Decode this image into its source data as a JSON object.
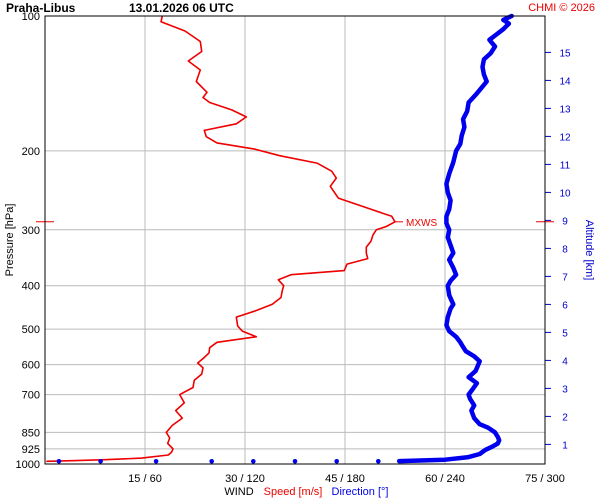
{
  "header": {
    "station": "Praha-Libus",
    "datetime": "13.01.2026 06 UTC",
    "credit": "CHMI © 2026"
  },
  "colors": {
    "speed": "#ee0000",
    "direction": "#0000ee",
    "altitude_axis": "#0000cc",
    "credit": "#ee0000",
    "grid": "#bbbbbb",
    "frame": "#000000"
  },
  "chart_data": {
    "type": "line",
    "title": "",
    "y_axis": {
      "label": "Pressure [hPa]",
      "scale": "log",
      "range": [
        1000,
        100
      ],
      "ticks": [
        100,
        200,
        300,
        400,
        500,
        600,
        700,
        850,
        925,
        1000
      ]
    },
    "y2_axis": {
      "label": "Altitude [km]",
      "range_km": [
        0.3,
        16.3
      ],
      "ticks": [
        1,
        2,
        3,
        4,
        5,
        6,
        7,
        8,
        9,
        10,
        11,
        12,
        13,
        14,
        15
      ]
    },
    "x_axis": {
      "label_prefix": "WIND",
      "speed_label": "Speed [m/s]",
      "direction_label": "Direction [°]",
      "speed_range": [
        0,
        75
      ],
      "direction_range": [
        0,
        360
      ],
      "ticks": [
        {
          "speed": 15,
          "direction": 60,
          "label": "15 / 60"
        },
        {
          "speed": 30,
          "direction": 120,
          "label": "30 / 120"
        },
        {
          "speed": 45,
          "direction": 180,
          "label": "45 / 180"
        },
        {
          "speed": 60,
          "direction": 240,
          "label": "60 / 240"
        },
        {
          "speed": 75,
          "direction": 300,
          "label": "75 / 300"
        }
      ]
    },
    "grid": true,
    "max_wind": {
      "label": "MXWS",
      "pressure": 288,
      "speed": 52.5
    },
    "series": [
      {
        "name": "Speed [m/s]",
        "unit": "m/s",
        "points": [
          [
            986,
            0.2
          ],
          [
            983,
            4.0
          ],
          [
            978,
            9.0
          ],
          [
            970,
            14.5
          ],
          [
            955,
            18.5
          ],
          [
            940,
            19.0
          ],
          [
            925,
            19.2
          ],
          [
            900,
            18.4
          ],
          [
            875,
            18.7
          ],
          [
            850,
            18.2
          ],
          [
            820,
            19.1
          ],
          [
            790,
            20.6
          ],
          [
            760,
            19.6
          ],
          [
            730,
            20.9
          ],
          [
            700,
            20.2
          ],
          [
            675,
            22.2
          ],
          [
            650,
            22.4
          ],
          [
            630,
            23.5
          ],
          [
            610,
            23.7
          ],
          [
            595,
            22.9
          ],
          [
            580,
            23.8
          ],
          [
            565,
            24.6
          ],
          [
            550,
            24.7
          ],
          [
            535,
            25.8
          ],
          [
            520,
            31.7
          ],
          [
            505,
            29.6
          ],
          [
            492,
            28.9
          ],
          [
            470,
            28.7
          ],
          [
            455,
            31.6
          ],
          [
            440,
            34.1
          ],
          [
            425,
            35.4
          ],
          [
            410,
            35.6
          ],
          [
            400,
            35.8
          ],
          [
            388,
            35.0
          ],
          [
            378,
            36.9
          ],
          [
            370,
            44.9
          ],
          [
            358,
            45.3
          ],
          [
            348,
            48.4
          ],
          [
            338,
            48.2
          ],
          [
            328,
            48.2
          ],
          [
            318,
            48.9
          ],
          [
            308,
            49.2
          ],
          [
            300,
            49.7
          ],
          [
            295,
            51.2
          ],
          [
            288,
            52.5
          ],
          [
            280,
            52.0
          ],
          [
            270,
            48.9
          ],
          [
            255,
            44.0
          ],
          [
            240,
            42.8
          ],
          [
            230,
            43.7
          ],
          [
            222,
            43.0
          ],
          [
            213,
            40.8
          ],
          [
            205,
            35.2
          ],
          [
            198,
            31.3
          ],
          [
            192,
            25.8
          ],
          [
            186,
            24.2
          ],
          [
            180,
            23.9
          ],
          [
            174,
            28.7
          ],
          [
            168,
            30.2
          ],
          [
            162,
            28.0
          ],
          [
            156,
            24.7
          ],
          [
            152,
            23.7
          ],
          [
            148,
            24.3
          ],
          [
            140,
            22.7
          ],
          [
            132,
            23.3
          ],
          [
            126,
            21.5
          ],
          [
            120,
            23.5
          ],
          [
            114,
            23.3
          ],
          [
            108,
            21.0
          ],
          [
            103,
            17.4
          ],
          [
            100,
            17.6
          ]
        ]
      },
      {
        "name": "Direction [°]",
        "unit": "deg",
        "points": [
          [
            986,
            10
          ],
          [
            986,
            40
          ],
          [
            986,
            80
          ],
          [
            986,
            120
          ],
          [
            986,
            150
          ],
          [
            986,
            180
          ],
          [
            986,
            210
          ],
          [
            986,
            240
          ],
          [
            985,
            255
          ],
          [
            978,
            288
          ],
          [
            965,
            305
          ],
          [
            950,
            313
          ],
          [
            930,
            317
          ],
          [
            915,
            322
          ],
          [
            900,
            326
          ],
          [
            885,
            327
          ],
          [
            870,
            326
          ],
          [
            850,
            324
          ],
          [
            830,
            319
          ],
          [
            815,
            313
          ],
          [
            790,
            309
          ],
          [
            760,
            307
          ],
          [
            740,
            309
          ],
          [
            715,
            306
          ],
          [
            700,
            305
          ],
          [
            680,
            308
          ],
          [
            660,
            311
          ],
          [
            640,
            305
          ],
          [
            620,
            310
          ],
          [
            600,
            312
          ],
          [
            590,
            313
          ],
          [
            575,
            309
          ],
          [
            560,
            303
          ],
          [
            548,
            301
          ],
          [
            535,
            299
          ],
          [
            520,
            296
          ],
          [
            505,
            291
          ],
          [
            490,
            289
          ],
          [
            470,
            290
          ],
          [
            450,
            292
          ],
          [
            440,
            294
          ],
          [
            420,
            291
          ],
          [
            400,
            290
          ],
          [
            390,
            292
          ],
          [
            378,
            296
          ],
          [
            365,
            294
          ],
          [
            350,
            291
          ],
          [
            338,
            294
          ],
          [
            325,
            292
          ],
          [
            312,
            290
          ],
          [
            300,
            291
          ],
          [
            290,
            289
          ],
          [
            280,
            289
          ],
          [
            270,
            291
          ],
          [
            258,
            292
          ],
          [
            248,
            290
          ],
          [
            237,
            289
          ],
          [
            225,
            291
          ],
          [
            212,
            294
          ],
          [
            200,
            296
          ],
          [
            193,
            299
          ],
          [
            185,
            300
          ],
          [
            177,
            302
          ],
          [
            170,
            301
          ],
          [
            163,
            304
          ],
          [
            156,
            305
          ],
          [
            150,
            310
          ],
          [
            145,
            314
          ],
          [
            140,
            318
          ],
          [
            135,
            316
          ],
          [
            130,
            315
          ],
          [
            125,
            316
          ],
          [
            121,
            321
          ],
          [
            117,
            324
          ],
          [
            113,
            320
          ],
          [
            110,
            325
          ],
          [
            107,
            330
          ],
          [
            104,
            334
          ],
          [
            102,
            330
          ],
          [
            100,
            336
          ]
        ]
      }
    ]
  }
}
